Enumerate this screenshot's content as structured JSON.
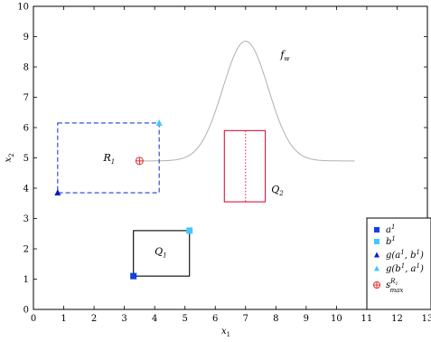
{
  "chart_data": {
    "type": "scatter",
    "xlabel": "x",
    "xlabel_sub": "1",
    "ylabel": "x",
    "ylabel_sub": "2",
    "xlim": [
      0,
      13
    ],
    "ylim": [
      0,
      10
    ],
    "xticks": [
      0,
      1,
      2,
      3,
      4,
      5,
      6,
      7,
      8,
      9,
      10,
      11,
      12,
      13
    ],
    "yticks": [
      0,
      1,
      2,
      3,
      4,
      5,
      6,
      7,
      8,
      9,
      10
    ],
    "grid": false,
    "legend_position": "bottom-right",
    "rectangles": [
      {
        "name": "R",
        "name_sub": "1",
        "x": [
          0.8,
          4.15
        ],
        "y": [
          3.85,
          6.15
        ],
        "style": "dashed",
        "color": "#1f3fd6",
        "label_at": [
          2.5,
          4.9
        ]
      },
      {
        "name": "Q",
        "name_sub": "2",
        "x": [
          6.3,
          7.65
        ],
        "y": [
          3.55,
          5.9
        ],
        "style": "solid",
        "color": "#dc143c",
        "label_at": [
          8.05,
          3.85
        ]
      },
      {
        "name": "Q",
        "name_sub": "1",
        "x": [
          3.3,
          5.15
        ],
        "y": [
          1.1,
          2.6
        ],
        "style": "solid",
        "color": "#000000",
        "label_at": [
          4.2,
          1.8
        ]
      }
    ],
    "vertical_line": {
      "x": 7.0,
      "y": [
        3.55,
        5.9
      ],
      "style": "dotted",
      "color": "#dc143c"
    },
    "curve": {
      "name": "f",
      "name_sub": "w",
      "label_at": [
        8.15,
        8.3
      ],
      "color": "#b0b0b0",
      "x_start": 3.5,
      "x_end": 10.6,
      "baseline": 4.9,
      "peak": 8.85,
      "mu": 7.0,
      "sigma": 0.75
    },
    "points": [
      {
        "label": "a",
        "label_sup": "1",
        "x": 3.3,
        "y": 1.1,
        "marker": "square",
        "color": "#1240e0"
      },
      {
        "label": "b",
        "label_sup": "1",
        "x": 5.15,
        "y": 2.6,
        "marker": "square",
        "color": "#40c8ff"
      },
      {
        "label": "g(a",
        "label_sup": "1",
        "label_tail": ", b",
        "label_sup2": "1",
        "label_end": ")",
        "x": 0.8,
        "y": 3.85,
        "marker": "triangle",
        "color": "#0a20c0"
      },
      {
        "label": "g(b",
        "label_sup": "1",
        "label_tail": ", a",
        "label_sup2": "1",
        "label_end": ")",
        "x": 4.15,
        "y": 6.15,
        "marker": "triangle",
        "color": "#40c8ff"
      },
      {
        "label": "s",
        "label_sup": "R1",
        "label_sub": "max",
        "x": 3.5,
        "y": 4.9,
        "marker": "circle-plus",
        "color": "#e03030"
      }
    ]
  }
}
